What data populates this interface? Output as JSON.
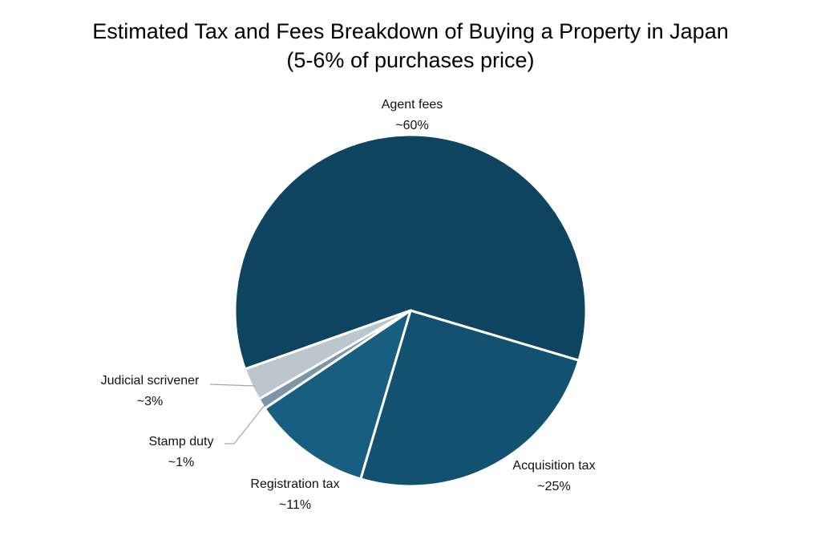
{
  "chart_data": {
    "type": "pie",
    "title": "Estimated Tax and Fees Breakdown of Buying a Property in Japan",
    "subtitle": "(5-6% of purchases price)",
    "slices": [
      {
        "name": "Agent fees",
        "label": "~60%",
        "value": 60,
        "color": "#0f4460"
      },
      {
        "name": "Acquisition tax",
        "label": "~25%",
        "value": 25,
        "color": "#125270"
      },
      {
        "name": "Registration tax",
        "label": "~11%",
        "value": 11,
        "color": "#185e80"
      },
      {
        "name": "Stamp duty",
        "label": "~1%",
        "value": 1,
        "color": "#7e95a7"
      },
      {
        "name": "Judicial scrivener",
        "label": "~3%",
        "value": 3,
        "color": "#bcc6ce"
      }
    ]
  }
}
